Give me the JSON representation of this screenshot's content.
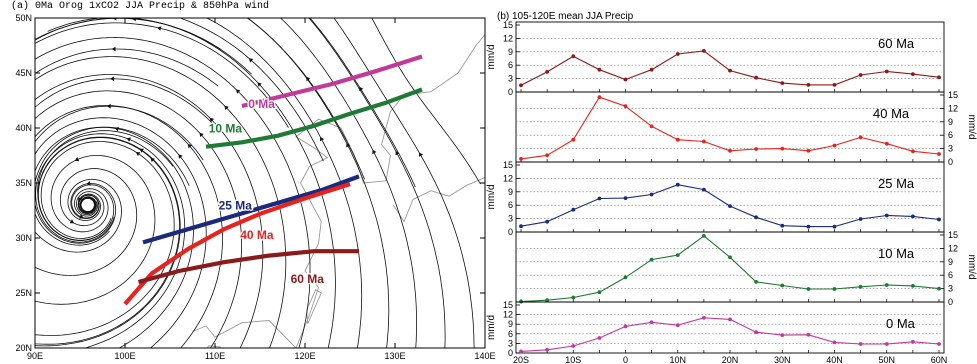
{
  "map_panel": {
    "title": "(a)  0Ma Orog 1xCO2 JJA Precip & 850hPa wind",
    "x_ticks": [
      "90E",
      "100E",
      "110E",
      "120E",
      "130E",
      "140E"
    ],
    "y_ticks": [
      "20N",
      "25N",
      "30N",
      "35N",
      "40N",
      "45N",
      "50N"
    ],
    "x_range": [
      90,
      140
    ],
    "y_range": [
      20,
      50
    ],
    "rainbelts": [
      {
        "name": "0 Ma",
        "color": "#c13a9a",
        "label_at": [
          113.7,
          41.8
        ],
        "points": [
          [
            113,
            42.0
          ],
          [
            118,
            43.0
          ],
          [
            123,
            44.0
          ],
          [
            128,
            45.2
          ],
          [
            133,
            46.5
          ]
        ]
      },
      {
        "name": "10 Ma",
        "color": "#1f7a33",
        "label_at": [
          109.3,
          39.6
        ],
        "points": [
          [
            109,
            38.3
          ],
          [
            113,
            38.7
          ],
          [
            117,
            39.3
          ],
          [
            121,
            40.2
          ],
          [
            125,
            41.3
          ],
          [
            129,
            42.3
          ],
          [
            133,
            43.5
          ]
        ]
      },
      {
        "name": "25 Ma",
        "color": "#1b2a7a",
        "label_at": [
          110.4,
          32.6
        ],
        "points": [
          [
            102,
            29.6
          ],
          [
            107,
            30.8
          ],
          [
            112,
            32.0
          ],
          [
            117,
            33.2
          ],
          [
            122,
            34.4
          ],
          [
            126,
            35.6
          ]
        ]
      },
      {
        "name": "40 Ma",
        "color": "#e8231f",
        "label_at": [
          112.8,
          29.9
        ],
        "points": [
          [
            100,
            24.0
          ],
          [
            103,
            26.8
          ],
          [
            107,
            29.0
          ],
          [
            111,
            30.8
          ],
          [
            115,
            32.2
          ],
          [
            120,
            33.6
          ],
          [
            125,
            34.9
          ]
        ]
      },
      {
        "name": "60 Ma",
        "color": "#8b1a1a",
        "label_at": [
          118.4,
          25.9
        ],
        "points": [
          [
            101.5,
            26.0
          ],
          [
            106,
            27.0
          ],
          [
            111,
            27.8
          ],
          [
            116,
            28.4
          ],
          [
            121,
            28.8
          ],
          [
            126,
            28.8
          ]
        ]
      }
    ]
  },
  "chart_data": {
    "type": "line",
    "title": "(b)  105-120E mean JJA Precip",
    "x": [
      "20S",
      "15S",
      "10S",
      "5S",
      "0",
      "5N",
      "10N",
      "15N",
      "20N",
      "25N",
      "30N",
      "35N",
      "40N",
      "45N",
      "50N",
      "55N",
      "60N"
    ],
    "x_ticks": [
      "20S",
      "10S",
      "0",
      "10N",
      "20N",
      "30N",
      "40N",
      "50N",
      "60N"
    ],
    "ylabel": "mm/d",
    "ylim": [
      0,
      15
    ],
    "y_ticks": [
      0,
      3,
      6,
      9,
      12,
      15
    ],
    "grid": true,
    "series": [
      {
        "name": "60 Ma",
        "color": "#8b1a1a",
        "axis_side": "left",
        "values": [
          1.5,
          4.5,
          8.0,
          5.0,
          2.8,
          5.0,
          8.5,
          9.2,
          4.8,
          3.2,
          2.0,
          1.6,
          1.6,
          3.8,
          4.6,
          4.0,
          3.3
        ]
      },
      {
        "name": "40 Ma",
        "color": "#e8231f",
        "axis_side": "right",
        "values": [
          0.7,
          1.5,
          5.0,
          14.5,
          12.5,
          8.0,
          5.0,
          4.6,
          2.5,
          2.9,
          3.0,
          2.5,
          3.7,
          5.5,
          4.1,
          2.4,
          1.8
        ]
      },
      {
        "name": "25 Ma",
        "color": "#1b2a7a",
        "axis_side": "left",
        "values": [
          1.3,
          2.3,
          5.0,
          7.5,
          7.6,
          8.4,
          10.6,
          9.5,
          5.8,
          3.3,
          1.4,
          1.2,
          1.2,
          2.9,
          3.7,
          3.5,
          2.8
        ]
      },
      {
        "name": "10 Ma",
        "color": "#1f7a33",
        "axis_side": "right",
        "values": [
          0.1,
          0.4,
          1.0,
          2.2,
          5.5,
          9.5,
          10.5,
          14.8,
          10.0,
          4.5,
          3.7,
          2.9,
          2.9,
          3.4,
          3.8,
          3.6,
          3.0
        ]
      },
      {
        "name": "0 Ma",
        "color": "#c13a9a",
        "axis_side": "left",
        "values": [
          0.5,
          1.0,
          2.2,
          4.7,
          8.3,
          9.6,
          8.7,
          11.0,
          10.5,
          6.5,
          5.6,
          5.7,
          3.3,
          2.8,
          2.8,
          3.5,
          2.8
        ]
      }
    ]
  }
}
